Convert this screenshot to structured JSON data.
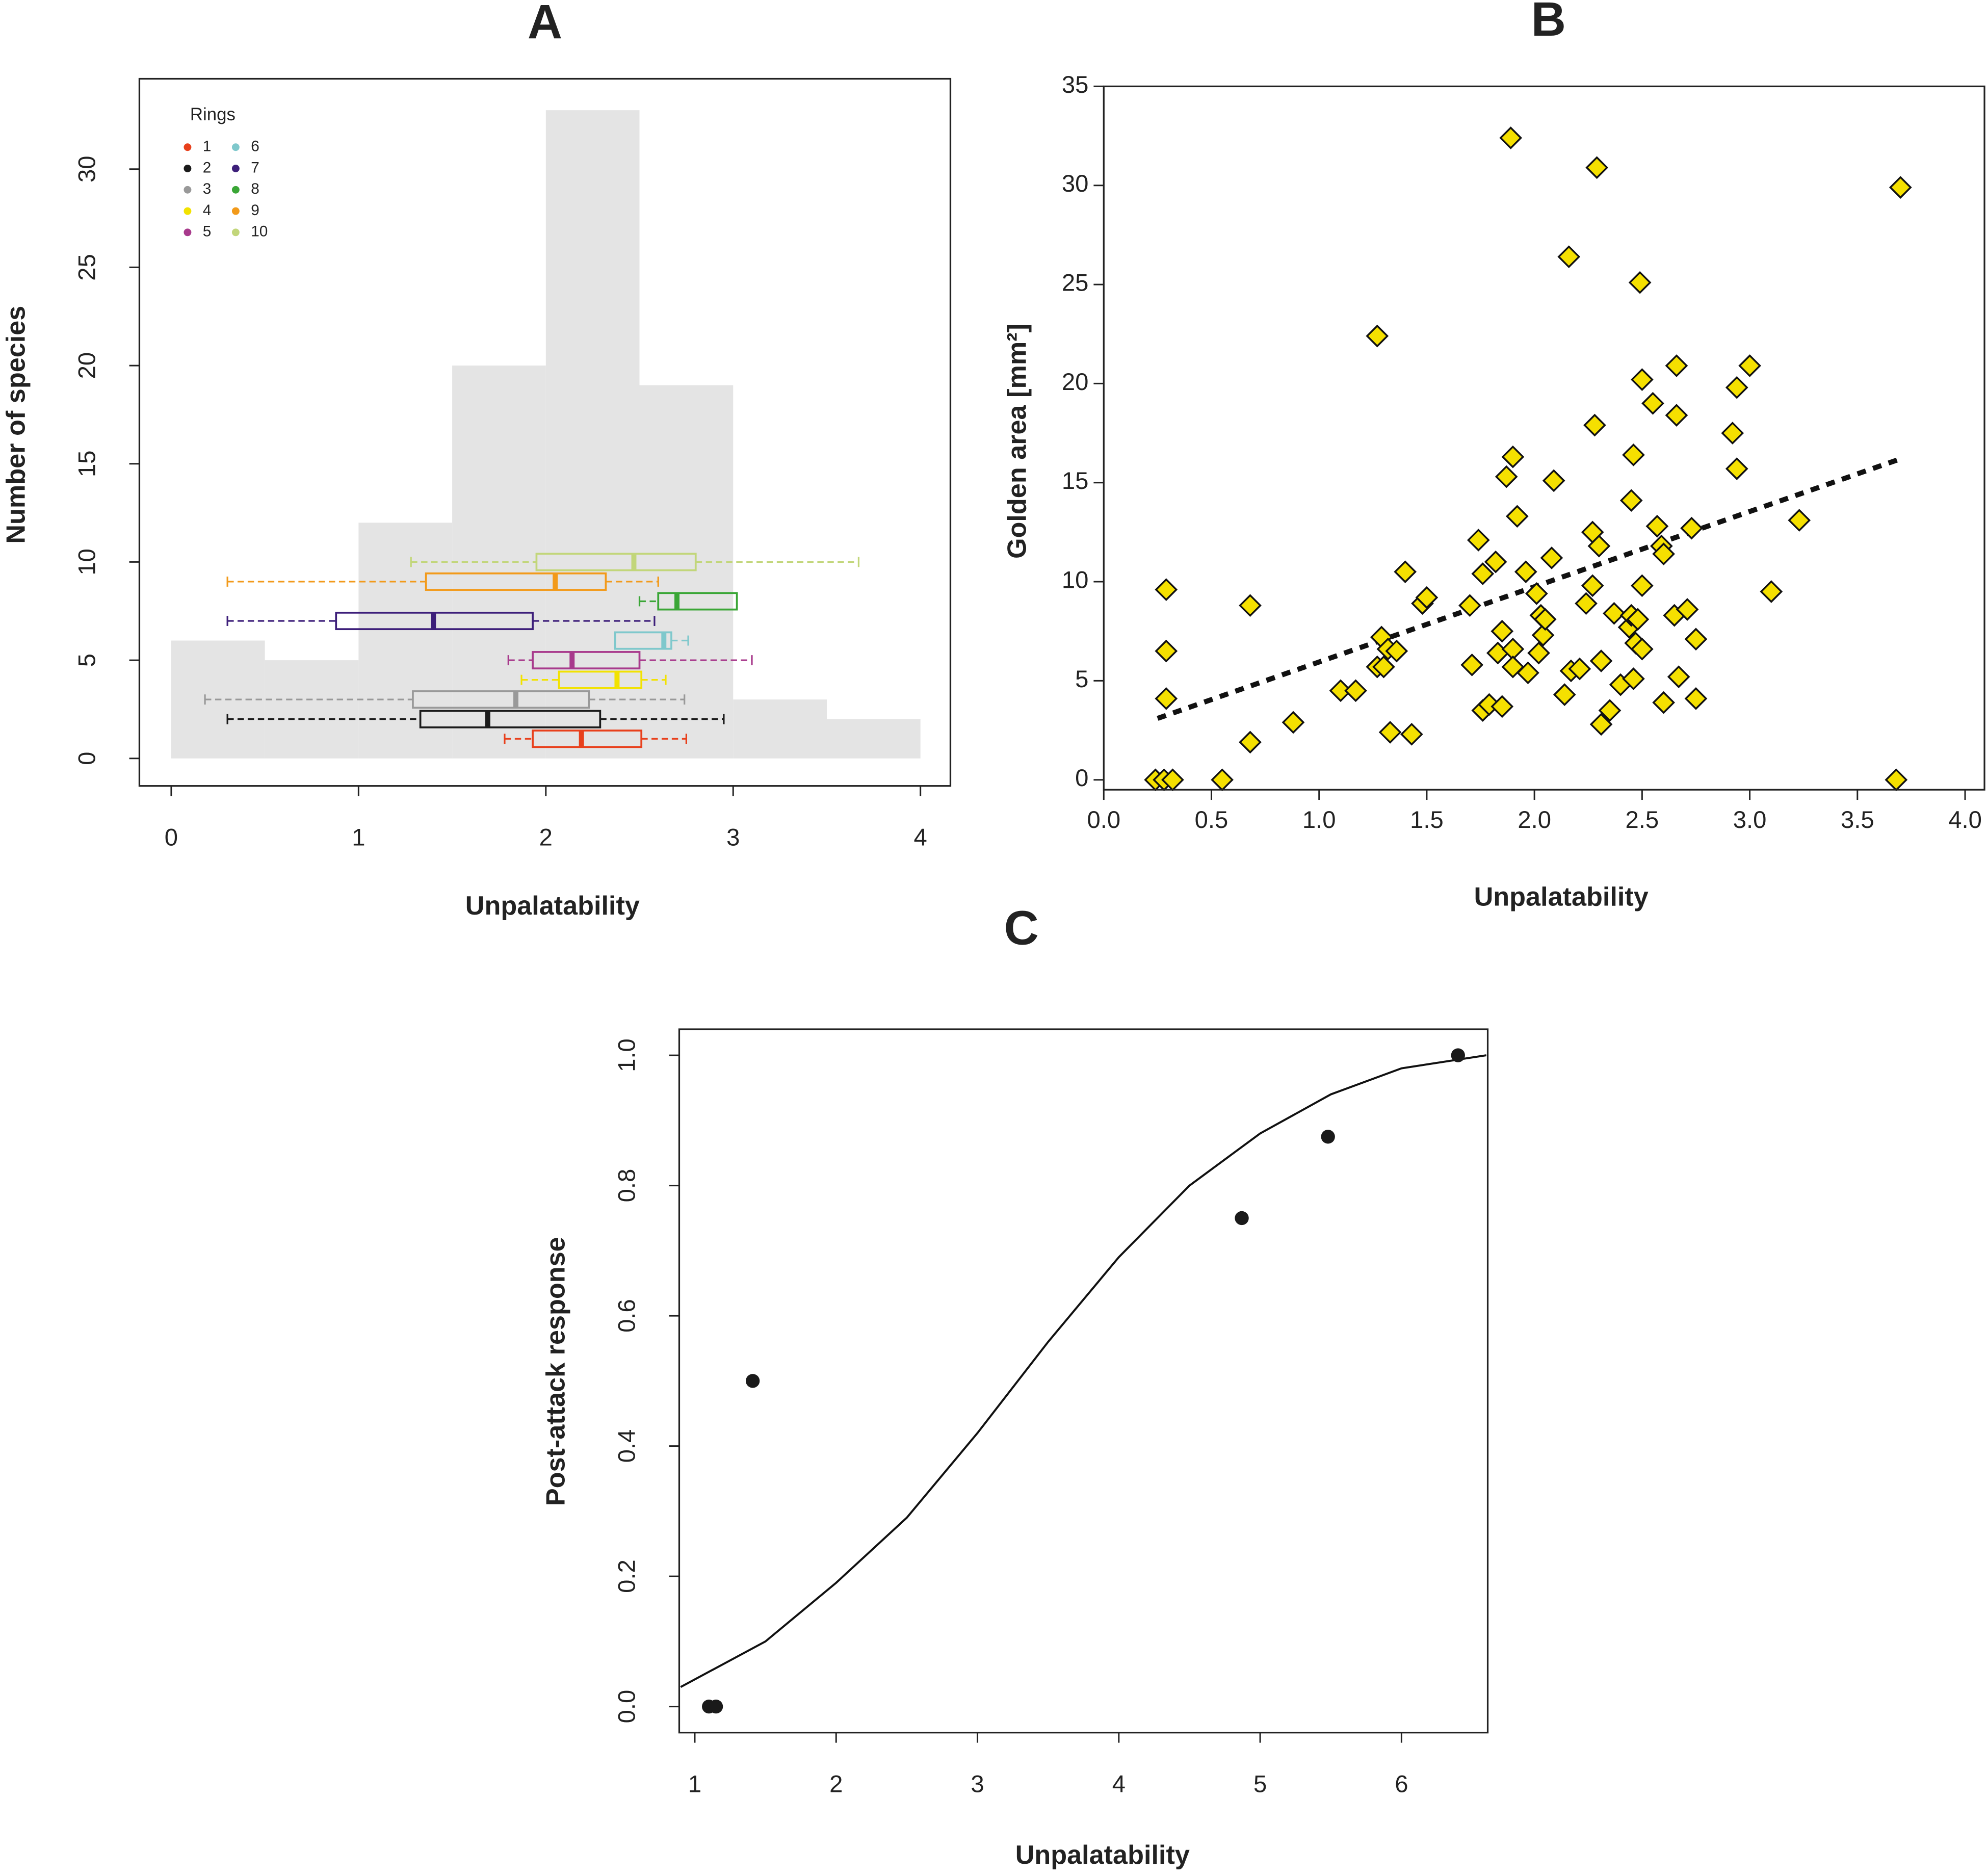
{
  "chart_data": [
    {
      "type": "histogram",
      "title": "A",
      "x_label": "Unpalatability",
      "y_label": "Number of species",
      "bins": [
        0,
        0.5,
        1,
        1.5,
        2,
        2.5,
        3,
        3.5,
        4
      ],
      "counts": [
        6,
        5,
        12,
        20,
        33,
        19,
        3,
        2
      ],
      "color": "#e4e4e4",
      "xlim": [
        -0.17,
        4.16
      ],
      "ylim": [
        -1.4,
        34.6
      ],
      "xticks": [
        0,
        1,
        2,
        3,
        4
      ],
      "yticks": [
        0,
        5,
        10,
        15,
        20,
        25,
        30
      ],
      "legend_title": "Rings",
      "legend": "upper left",
      "boxplots": [
        {
          "name": "1",
          "color": "#e8401c",
          "whisker_low": 1.78,
          "q1": 1.93,
          "median": 2.19,
          "q3": 2.51,
          "whisker_high": 2.75
        },
        {
          "name": "2",
          "color": "#1a1a1a",
          "whisker_low": 0.3,
          "q1": 1.33,
          "median": 1.69,
          "q3": 2.29,
          "whisker_high": 2.95
        },
        {
          "name": "3",
          "color": "#999999",
          "whisker_low": 0.18,
          "q1": 1.29,
          "median": 1.84,
          "q3": 2.23,
          "whisker_high": 2.74
        },
        {
          "name": "4",
          "color": "#f2e200",
          "whisker_low": 1.87,
          "q1": 2.07,
          "median": 2.38,
          "q3": 2.51,
          "whisker_high": 2.64
        },
        {
          "name": "5",
          "color": "#a83a8c",
          "whisker_low": 1.8,
          "q1": 1.93,
          "median": 2.14,
          "q3": 2.5,
          "whisker_high": 3.1
        },
        {
          "name": "6",
          "color": "#7fc8cc",
          "whisker_low": 2.37,
          "q1": 2.37,
          "median": 2.63,
          "q3": 2.67,
          "whisker_high": 2.76
        },
        {
          "name": "7",
          "color": "#3d1f7a",
          "whisker_low": 0.3,
          "q1": 0.88,
          "median": 1.4,
          "q3": 1.93,
          "whisker_high": 2.58
        },
        {
          "name": "8",
          "color": "#3aa636",
          "whisker_low": 2.5,
          "q1": 2.6,
          "median": 2.7,
          "q3": 3.02,
          "whisker_high": 3.02
        },
        {
          "name": "9",
          "color": "#f29a1a",
          "whisker_low": 0.3,
          "q1": 1.36,
          "median": 2.05,
          "q3": 2.32,
          "whisker_high": 2.6
        },
        {
          "name": "10",
          "color": "#c2d67a",
          "whisker_low": 1.28,
          "q1": 1.95,
          "median": 2.47,
          "q3": 2.8,
          "whisker_high": 3.67
        }
      ]
    },
    {
      "type": "scatter",
      "title": "B",
      "x_label": "Unpalatability",
      "y_label": "Golden area [mm²]",
      "marker": "diamond",
      "color": "#f5e000",
      "x": [
        0.24,
        0.28,
        0.32,
        0.55,
        3.68,
        0.29,
        0.29,
        0.29,
        0.68,
        0.68,
        0.88,
        1.1,
        1.17,
        1.27,
        1.27,
        1.29,
        1.3,
        1.32,
        1.33,
        1.36,
        1.4,
        1.43,
        1.48,
        1.5,
        1.7,
        1.71,
        1.74,
        1.76,
        1.76,
        1.79,
        1.82,
        1.83,
        1.85,
        1.85,
        1.87,
        1.89,
        1.9,
        1.9,
        1.9,
        1.92,
        1.96,
        1.97,
        2.01,
        2.02,
        2.03,
        2.04,
        2.05,
        2.08,
        2.09,
        2.14,
        2.16,
        2.17,
        2.21,
        2.24,
        2.27,
        2.27,
        2.28,
        2.29,
        2.3,
        2.31,
        2.31,
        2.35,
        2.37,
        2.4,
        2.44,
        2.45,
        2.45,
        2.46,
        2.46,
        2.47,
        2.48,
        2.49,
        2.5,
        2.5,
        2.5,
        2.55,
        2.57,
        2.59,
        2.6,
        2.6,
        2.65,
        2.66,
        2.66,
        2.67,
        2.71,
        2.73,
        2.75,
        2.75,
        2.92,
        2.94,
        2.94,
        3.0,
        3.1,
        3.23,
        3.7
      ],
      "y": [
        0,
        0,
        0,
        0,
        0,
        9.6,
        6.5,
        4.1,
        8.8,
        1.9,
        2.9,
        4.5,
        4.5,
        22.4,
        5.7,
        7.2,
        5.7,
        6.6,
        2.4,
        6.5,
        10.5,
        2.3,
        8.9,
        9.2,
        8.8,
        5.8,
        12.1,
        10.4,
        3.5,
        3.8,
        11,
        6.4,
        3.7,
        7.5,
        15.3,
        32.4,
        16.3,
        6.6,
        5.7,
        13.3,
        10.5,
        5.4,
        9.4,
        6.4,
        8.3,
        7.3,
        8.1,
        11.2,
        15.1,
        4.3,
        26.4,
        5.5,
        5.6,
        8.9,
        9.8,
        12.5,
        17.9,
        30.9,
        11.8,
        6.0,
        2.8,
        3.5,
        8.4,
        4.8,
        7.7,
        14.1,
        8.3,
        16.4,
        5.1,
        6.9,
        8.1,
        25.1,
        6.6,
        20.2,
        9.8,
        19.0,
        12.8,
        11.8,
        11.4,
        3.9,
        8.3,
        20.9,
        18.4,
        5.2,
        8.6,
        12.7,
        7.1,
        4.1,
        17.5,
        15.7,
        19.8,
        20.9,
        9.5,
        13.1,
        29.9
      ],
      "fit": {
        "x": [
          0.25,
          3.7
        ],
        "y": [
          3.1,
          16.2
        ],
        "style": "dashed"
      },
      "xlim": [
        0,
        4.09
      ],
      "ylim": [
        -0.5,
        35
      ],
      "xticks": [
        {
          "value": 0,
          "label": "0.0"
        },
        0.5,
        {
          "value": 1,
          "label": "1.0"
        },
        1.5,
        {
          "value": 2,
          "label": "2.0"
        },
        2.5,
        {
          "value": 3,
          "label": "3.0"
        },
        3.5,
        {
          "value": 4,
          "label": "4.0"
        }
      ],
      "yticks": [
        0,
        5,
        10,
        15,
        20,
        25,
        30,
        35
      ]
    },
    {
      "type": "scatter",
      "title": "C",
      "x_label": "Unpalatability",
      "y_label": "Post-attack response",
      "marker": "circle",
      "color": "#1a1a1a",
      "x": [
        1.1,
        1.15,
        1.41,
        4.87,
        5.48,
        6.4
      ],
      "y": [
        0,
        0,
        0.5,
        0.75,
        0.875,
        1.0
      ],
      "fit": {
        "x": [
          0.9,
          1.5,
          2,
          2.5,
          3,
          3.5,
          4,
          4.5,
          5,
          5.5,
          6,
          6.6
        ],
        "y": [
          0.03,
          0.1,
          0.19,
          0.29,
          0.42,
          0.56,
          0.69,
          0.8,
          0.88,
          0.94,
          0.98,
          1.0
        ],
        "style": "solid"
      },
      "xlim": [
        0.89,
        6.61
      ],
      "ylim": [
        -0.04,
        1.04
      ],
      "xticks": [
        1,
        2,
        3,
        4,
        5,
        6
      ],
      "yticks": [
        {
          "value": 0,
          "label": "0.0"
        },
        0.2,
        0.4,
        0.6,
        0.8,
        {
          "value": 1,
          "label": "1.0"
        }
      ]
    }
  ]
}
